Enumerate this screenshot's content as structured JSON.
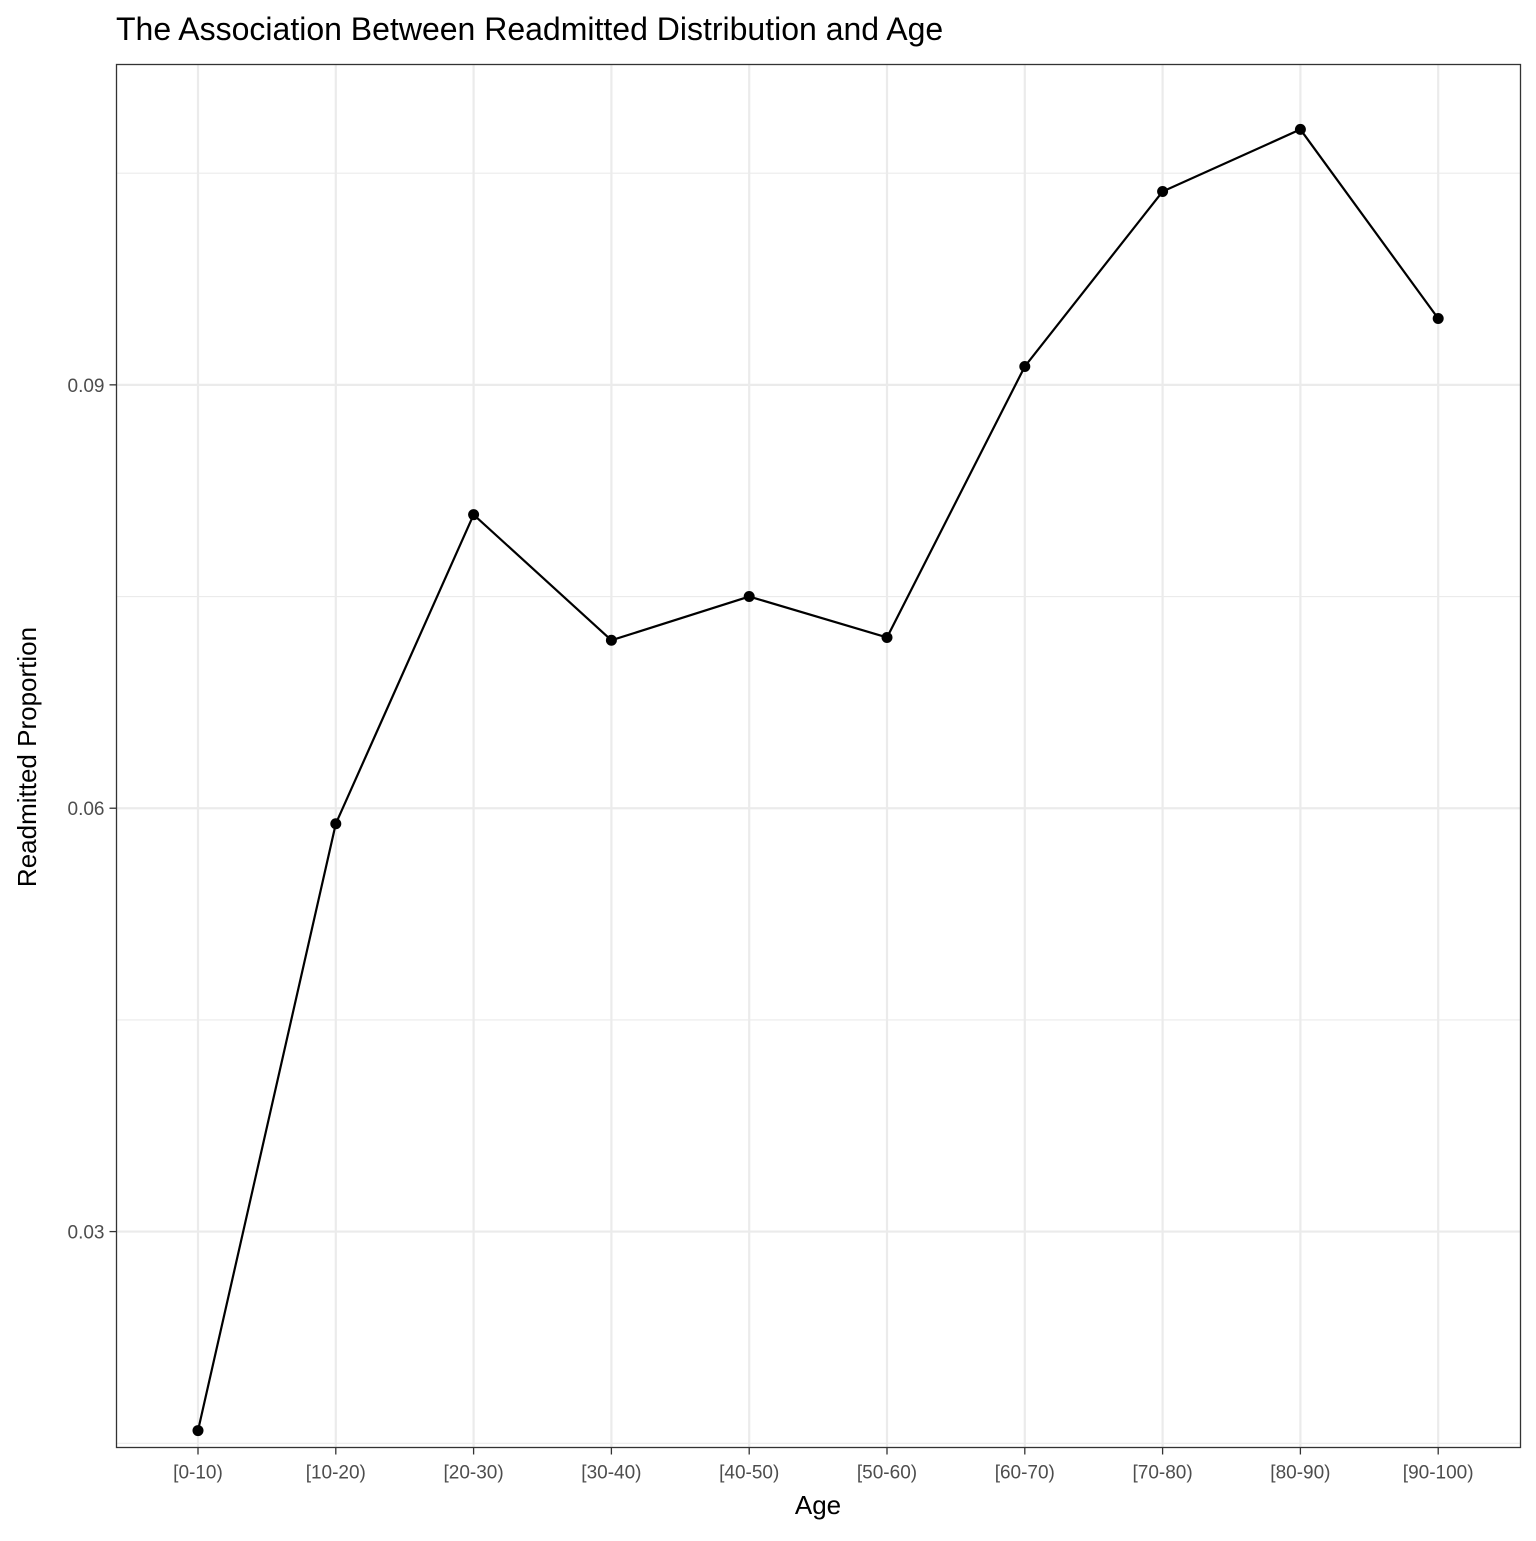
{
  "chart_data": {
    "type": "line",
    "title": "The Association Between Readmitted Distribution and Age",
    "xlabel": "Age",
    "ylabel": "Readmitted Proportion",
    "categories": [
      "[0-10)",
      "[10-20)",
      "[20-30)",
      "[30-40)",
      "[40-50)",
      "[50-60)",
      "[60-70)",
      "[70-80)",
      "[80-90)",
      "[90-100)"
    ],
    "values": [
      0.0159,
      0.0589,
      0.0808,
      0.0719,
      0.075,
      0.0721,
      0.0913,
      0.1037,
      0.1081,
      0.0947
    ],
    "yticks": [
      0.03,
      0.06,
      0.09
    ],
    "ytick_labels": [
      "0.03",
      "0.06",
      "0.09"
    ],
    "ylim": [
      0.0147,
      0.1127
    ],
    "grid": true,
    "legend": "none",
    "colors": {
      "line": "#000000",
      "grid": "#ebebeb",
      "tick_text": "#4d4d4d",
      "border": "#333333"
    }
  }
}
